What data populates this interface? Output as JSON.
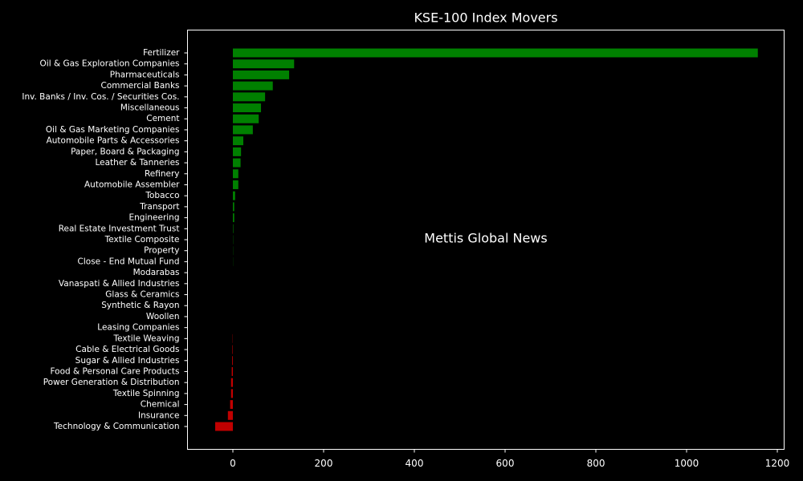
{
  "chart_data": {
    "type": "barh",
    "title": "KSE-100 Index Movers",
    "annotation": "Mettis Global News",
    "annotation_color": "#c0661c",
    "categories": [
      "Fertilizer",
      "Oil & Gas Exploration Companies",
      "Pharmaceuticals",
      "Commercial Banks",
      "Inv. Banks / Inv. Cos. / Securities Cos.",
      "Miscellaneous",
      "Cement",
      "Oil & Gas Marketing Companies",
      "Automobile Parts & Accessories",
      "Paper, Board & Packaging",
      "Leather & Tanneries",
      "Refinery",
      "Automobile Assembler",
      "Tobacco",
      "Transport",
      "Engineering",
      "Real Estate Investment Trust",
      "Textile Composite",
      "Property",
      "Close - End Mutual Fund",
      "Modarabas",
      "Vanaspati & Allied Industries",
      "Glass & Ceramics",
      "Synthetic & Rayon",
      "Woollen",
      "Leasing Companies",
      "Textile Weaving",
      "Cable & Electrical Goods",
      "Sugar & Allied Industries",
      "Food & Personal Care Products",
      "Power Generation & Distribution",
      "Textile Spinning",
      "Chemical",
      "Insurance",
      "Technology & Communication"
    ],
    "values": [
      1157,
      135,
      124,
      88,
      71,
      62,
      57,
      44,
      23,
      18,
      17,
      12,
      12,
      5,
      3,
      3,
      1,
      0.5,
      0.4,
      0.3,
      0,
      0,
      0,
      0,
      0,
      0,
      -0.5,
      -1,
      -1.5,
      -2.5,
      -4,
      -4,
      -6,
      -11,
      -39
    ],
    "color": "#008000",
    "negative_color": "#c00000",
    "xlim": [
      -100,
      1215
    ],
    "xticks": [
      0,
      200,
      400,
      600,
      800,
      1000,
      1200
    ]
  }
}
